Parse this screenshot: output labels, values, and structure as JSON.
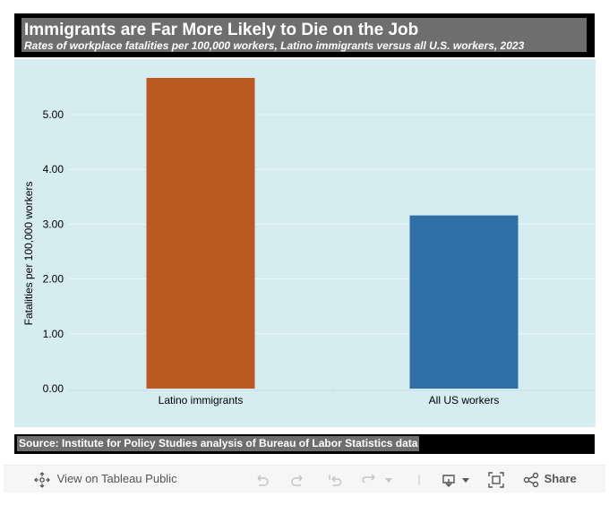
{
  "header": {
    "title": "Immigrants are Far More Likely to Die on the Job",
    "subtitle": "Rates of workplace fatalities per 100,000 workers, Latino immigrants versus all U.S. workers, 2023"
  },
  "footer": {
    "source": "Source: Institute for Policy Studies analysis of Bureau of Labor Statistics data"
  },
  "toolbar": {
    "view_label": "View on Tableau Public",
    "share_label": "Share",
    "icons": [
      "move-icon",
      "undo-icon",
      "redo-icon",
      "revert-icon",
      "refresh-icon",
      "dropdown-arrow-icon",
      "download-icon",
      "fullscreen-icon",
      "share-icon"
    ]
  },
  "chart_data": {
    "type": "bar",
    "title": "",
    "categories": [
      "Latino immigrants",
      "All US workers"
    ],
    "values": [
      5.67,
      3.16
    ],
    "colors": [
      "#bb5a20",
      "#2f6fa6"
    ],
    "xlabel": "",
    "ylabel": "Fatalities per 100,000 workers",
    "yticks": [
      "0.00",
      "1.00",
      "2.00",
      "3.00",
      "4.00",
      "5.00"
    ],
    "ylim": [
      0,
      5.8
    ],
    "grid": true,
    "background": "#d5edf0"
  }
}
